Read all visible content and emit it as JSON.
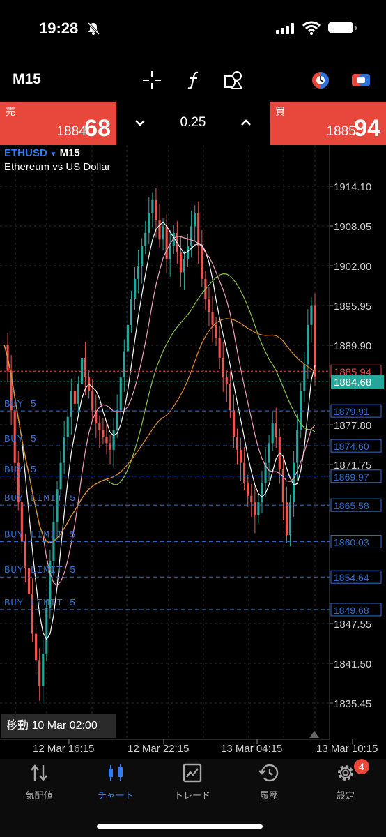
{
  "status_bar": {
    "time": "19:28"
  },
  "toolbar": {
    "timeframe": "M15",
    "icons": [
      "crosshair-icon",
      "function-icon",
      "objects-icon",
      "one-click-trading-icon",
      "trade-panel-toggle-icon"
    ]
  },
  "quote": {
    "sell_label": "売",
    "sell_price_small": "1884.",
    "sell_price_big": "68",
    "buy_label": "買",
    "buy_price_small": "1885.",
    "buy_price_big": "94",
    "lot": "0.25"
  },
  "chart": {
    "symbol": "ETHUSD",
    "timeframe": "M15",
    "description": "Ethereum vs US Dollar",
    "price_axis": [
      "1914.10",
      "1908.05",
      "1902.00",
      "1895.95",
      "1889.90",
      "1877.80",
      "1871.75",
      "1847.55",
      "1841.50",
      "1835.45"
    ],
    "time_axis": [
      "12 Mar 16:15",
      "12 Mar 22:15",
      "13 Mar 04:15",
      "13 Mar 10:15"
    ],
    "ask_price_label": "1885.94",
    "bid_price_label": "1884.68",
    "orders": [
      {
        "label": "BUY 5",
        "price": "1879.91"
      },
      {
        "label": "BUY 5",
        "price": "1874.60"
      },
      {
        "label": "BUY 5",
        "price": "1869.97"
      },
      {
        "label": "BUY LIMIT 5",
        "price": "1865.58"
      },
      {
        "label": "BUY LIMIT 5",
        "price": "1860.03"
      },
      {
        "label": "BUY LIMIT 5",
        "price": "1854.64"
      },
      {
        "label": "BUY LIMIT 5",
        "price": "1849.68"
      }
    ],
    "cursor_time_label": "移動 10 Mar 02:00",
    "colors": {
      "bull": "#26a69a",
      "bear": "#ef5350",
      "order_line": "#2f6fd6",
      "ask": "#e8473c",
      "bid": "#26a69a"
    }
  },
  "tabs": [
    {
      "label": "気配値",
      "icon": "quotes-icon"
    },
    {
      "label": "チャート",
      "icon": "chart-icon",
      "active": true
    },
    {
      "label": "トレード",
      "icon": "trade-icon"
    },
    {
      "label": "履歴",
      "icon": "history-icon"
    },
    {
      "label": "設定",
      "icon": "settings-icon",
      "badge": "4"
    }
  ]
}
